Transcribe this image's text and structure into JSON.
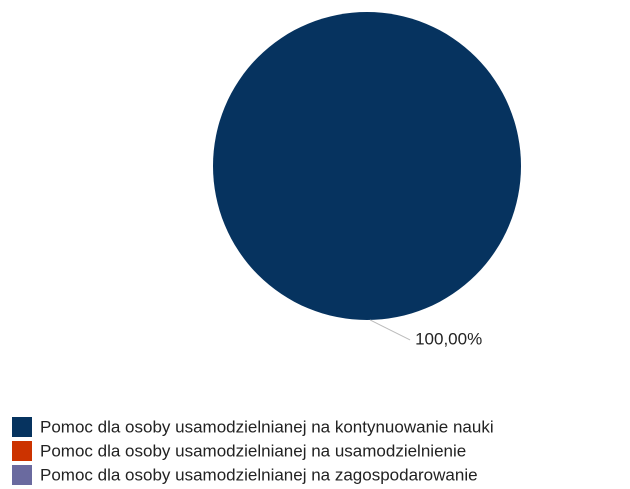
{
  "chart_data": {
    "type": "pie",
    "categories": [
      "Pomoc dla osoby usamodzielnianej na kontynuowanie nauki",
      "Pomoc dla osoby usamodzielnianej na usamodzielnienie",
      "Pomoc dla osoby usamodzielnianej na zagospodarowanie"
    ],
    "values": [
      100,
      0,
      0
    ],
    "value_labels": [
      "100,00%",
      null,
      null
    ],
    "colors": [
      "#06335f",
      "#cc3300",
      "#6a6a9f"
    ]
  }
}
